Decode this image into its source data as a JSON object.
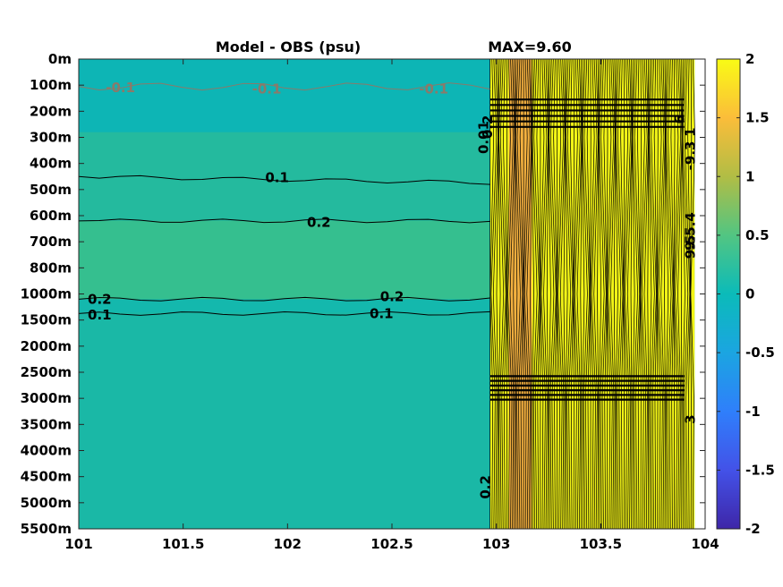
{
  "chart_data": {
    "type": "heatmap",
    "title": "Model - OBS (psu)",
    "subtitle": "MAX=9.60",
    "xlabel": "",
    "ylabel": "",
    "xlim": [
      101,
      104
    ],
    "x_ticks": [
      "101",
      "101.5",
      "102",
      "102.5",
      "103",
      "103.5",
      "104"
    ],
    "y_ticks": [
      "0m",
      "100m",
      "200m",
      "300m",
      "400m",
      "500m",
      "600m",
      "700m",
      "800m",
      "1000m",
      "1500m",
      "2000m",
      "2500m",
      "3000m",
      "3500m",
      "4000m",
      "4500m",
      "5000m",
      "5500m"
    ],
    "colorbar": {
      "range": [
        -2,
        2
      ],
      "ticks": [
        "2",
        "1.5",
        "1",
        "0.5",
        "0",
        "-0.5",
        "-1",
        "-1.5",
        "-2"
      ],
      "colormap": "parula"
    },
    "field_summary": {
      "west_of_103_background": 0.1,
      "upper_700_1000m_band": 0.2,
      "east_of_103_max": 9.6,
      "high_bands_depth": [
        "200m-300m",
        "2500m-3000m"
      ]
    },
    "contours": [
      {
        "level": -0.1,
        "label": "-0.1",
        "depth": "100m",
        "color": "#8a7a6a"
      },
      {
        "level": 0.1,
        "label": "0.1",
        "depth": "450m"
      },
      {
        "level": 0.2,
        "label": "0.2",
        "depth": "650m"
      },
      {
        "level": 0.2,
        "label": "0.2",
        "depth": "1200m"
      },
      {
        "level": 0.1,
        "label": "0.1",
        "depth": "1400m"
      }
    ],
    "east_labels": [
      "0.01",
      "0.2",
      "1",
      "-9.3",
      "6",
      "9.5",
      "9.5.4",
      "0.2",
      "3"
    ]
  }
}
